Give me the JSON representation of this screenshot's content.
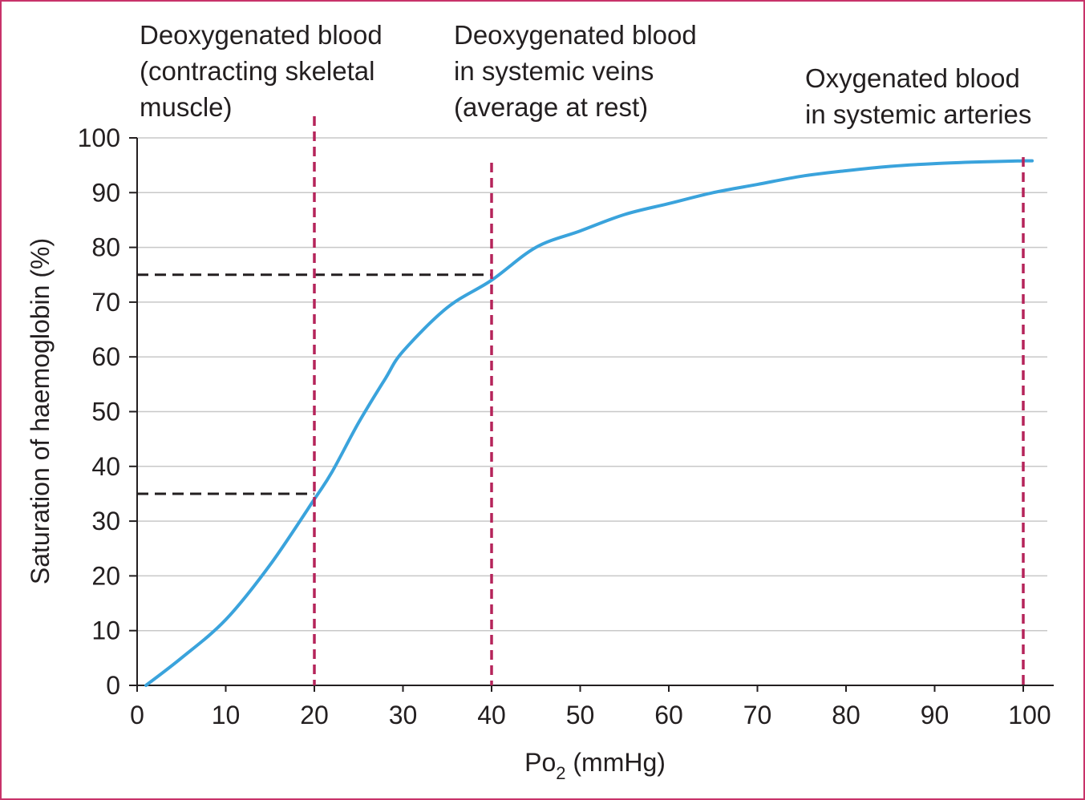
{
  "chart_data": {
    "type": "line",
    "xlabel": "Po",
    "xlabel_subscript": "2",
    "xlabel_unit": " (mmHg)",
    "ylabel": "Saturation of haemoglobin (%)",
    "xlim": [
      0,
      103
    ],
    "ylim": [
      0,
      100
    ],
    "x_ticks": [
      0,
      10,
      20,
      30,
      40,
      50,
      60,
      70,
      80,
      90,
      100
    ],
    "y_ticks": [
      0,
      10,
      20,
      30,
      40,
      50,
      60,
      70,
      80,
      90,
      100
    ],
    "grid": "horizontal",
    "colors": {
      "curve": "#3aa3dc",
      "marker_lines": "#b5245a",
      "reference_lines": "#231f20",
      "grid": "#c8c8c8",
      "border": "#c8336a"
    },
    "series": [
      {
        "x": [
          1,
          5,
          10,
          15,
          20,
          22,
          25,
          28,
          30,
          35,
          40,
          45,
          50,
          55,
          60,
          65,
          70,
          75,
          80,
          85,
          90,
          95,
          100,
          101
        ],
        "values": [
          0,
          5,
          12,
          22,
          34,
          39,
          48,
          56,
          61,
          69,
          74,
          80,
          83,
          86,
          88,
          90,
          91.5,
          93,
          94,
          94.8,
          95.3,
          95.6,
          95.8,
          95.8
        ]
      }
    ],
    "vertical_markers": [
      {
        "x": 20,
        "label_lines": [
          "Deoxygenated blood",
          "(contracting skeletal",
          "muscle)"
        ]
      },
      {
        "x": 40,
        "label_lines": [
          "Deoxygenated blood",
          "in systemic veins",
          "(average at rest)"
        ]
      },
      {
        "x": 100,
        "label_lines": [
          "Oxygenated blood",
          "in systemic arteries"
        ]
      }
    ],
    "horizontal_references": [
      {
        "y": 75,
        "x_end": 40
      },
      {
        "y": 35,
        "x_end": 20
      }
    ]
  }
}
